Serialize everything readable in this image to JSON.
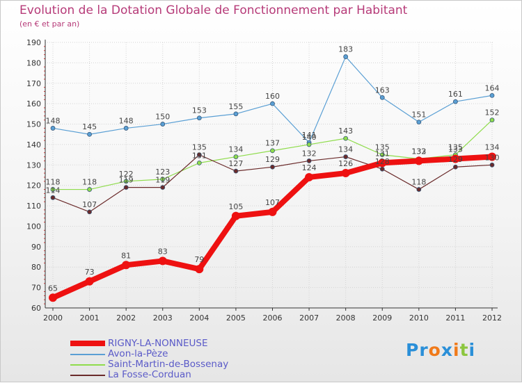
{
  "chart_data": {
    "type": "line",
    "title": "Evolution de la Dotation Globale de Fonctionnement par Habitant",
    "subtitle": "(en € et par an)",
    "categories": [
      "2000",
      "2001",
      "2002",
      "2003",
      "2004",
      "2005",
      "2006",
      "2007",
      "2008",
      "2009",
      "2010",
      "2011",
      "2012"
    ],
    "ylim": [
      60,
      190
    ],
    "yticks": [
      60,
      70,
      80,
      90,
      100,
      110,
      120,
      130,
      140,
      150,
      160,
      170,
      180,
      190
    ],
    "series": [
      {
        "name": "RIGNY-LA-NONNEUSE",
        "color": "#ee1111",
        "width": 8,
        "marker": 6,
        "values": [
          65,
          73,
          81,
          83,
          79,
          105,
          107,
          124,
          126,
          131,
          132,
          133,
          134
        ]
      },
      {
        "name": "Avon-la-Pèze",
        "color": "#5a9fd4",
        "width": 1.2,
        "marker": 3,
        "values": [
          148,
          145,
          148,
          150,
          153,
          155,
          160,
          141,
          183,
          163,
          151,
          161,
          164
        ]
      },
      {
        "name": "Saint-Martin-de-Bossenay",
        "color": "#8fdc4c",
        "width": 1.2,
        "marker": 3,
        "values": [
          118,
          118,
          122,
          123,
          131,
          134,
          137,
          140,
          143,
          135,
          133,
          135,
          152
        ]
      },
      {
        "name": "La Fosse-Corduan",
        "color": "#6a2a2a",
        "width": 1.2,
        "marker": 3,
        "values": [
          114,
          107,
          119,
          119,
          135,
          127,
          129,
          132,
          134,
          128,
          118,
          129,
          130
        ]
      }
    ]
  },
  "logo": {
    "text": "Proxiti",
    "letters": [
      "P",
      "r",
      "o",
      "x",
      "i",
      "t",
      "i"
    ],
    "colors": [
      "#2a8fd8",
      "#2a8fd8",
      "#f07a1a",
      "#2a8fd8",
      "#f07a1a",
      "#8cc63f",
      "#2a8fd8"
    ]
  }
}
